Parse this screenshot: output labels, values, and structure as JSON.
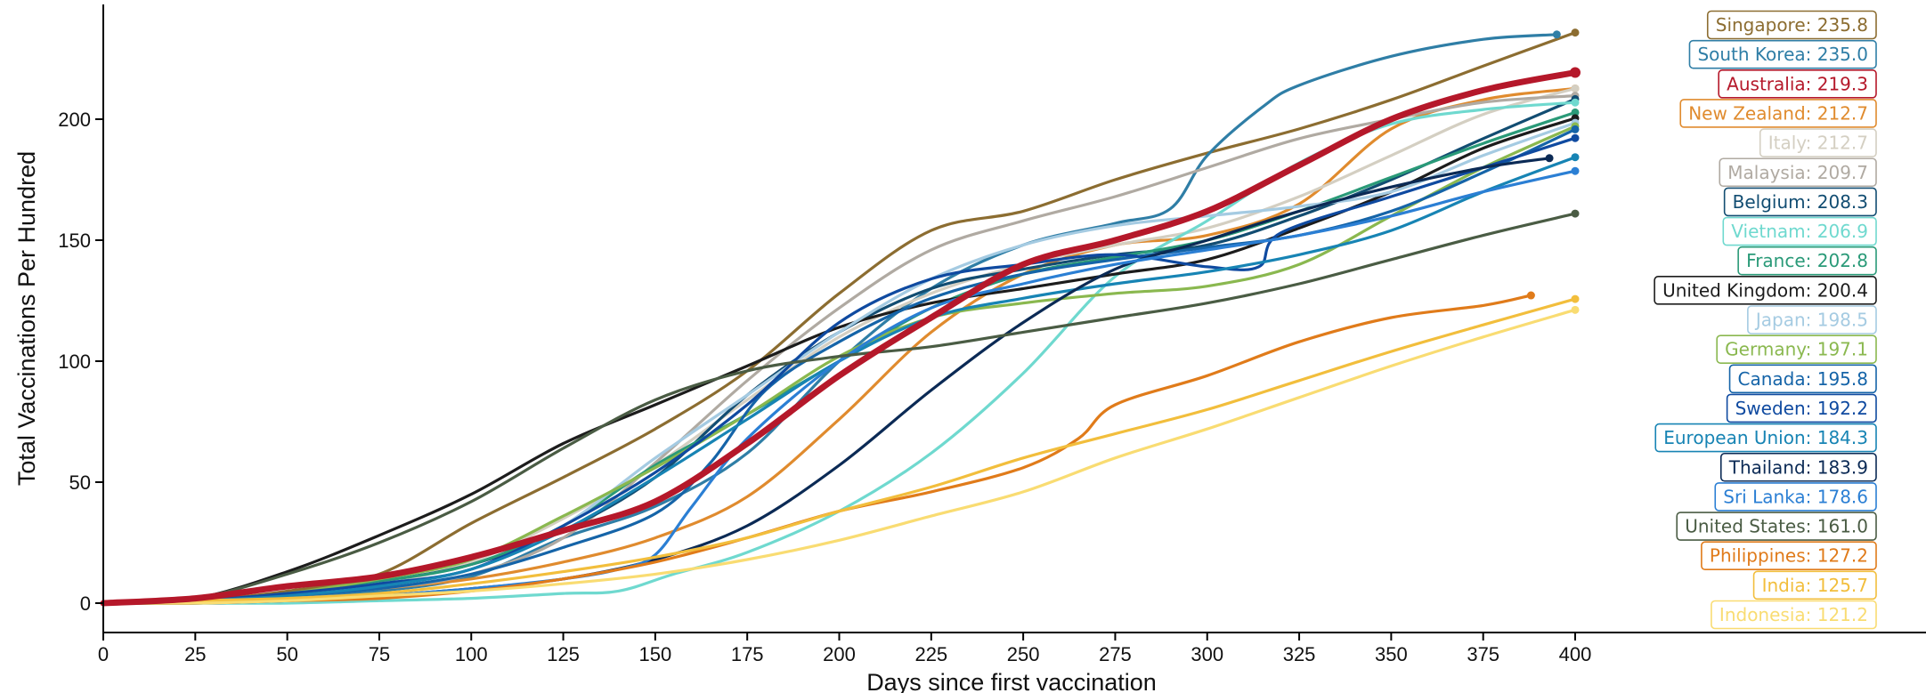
{
  "chart_data": {
    "type": "line",
    "title": "",
    "xlabel": "Days since first vaccination",
    "ylabel": "Total Vaccinations Per Hundred",
    "xlim": [
      0,
      400
    ],
    "ylim": [
      -12,
      246
    ],
    "xticks": [
      0,
      25,
      50,
      75,
      100,
      125,
      150,
      175,
      200,
      225,
      250,
      275,
      300,
      325,
      350,
      375,
      400
    ],
    "yticks": [
      0,
      50,
      100,
      150,
      200
    ],
    "grid": false,
    "legend": "right, end-of-line labels",
    "series": [
      {
        "name": "Singapore",
        "label": "Singapore: 235.8",
        "color": "#8c6d31",
        "end_x": 400,
        "x": [
          0,
          25,
          50,
          75,
          100,
          125,
          150,
          175,
          200,
          225,
          250,
          275,
          300,
          325,
          350,
          375,
          400
        ],
        "y": [
          0,
          1,
          5,
          12,
          33,
          52,
          72,
          96,
          128,
          154,
          162,
          175,
          186,
          196,
          208,
          222,
          235.8
        ]
      },
      {
        "name": "South Korea",
        "label": "South Korea: 235.0",
        "color": "#2f7ea6",
        "end_x": 395,
        "x": [
          0,
          25,
          50,
          75,
          100,
          125,
          150,
          175,
          200,
          225,
          250,
          275,
          290,
          300,
          315,
          325,
          350,
          375,
          395
        ],
        "y": [
          0,
          0,
          2,
          5,
          11,
          27,
          40,
          62,
          100,
          130,
          148,
          157,
          163,
          185,
          205,
          214,
          226,
          233,
          235.0
        ]
      },
      {
        "name": "Australia",
        "label": "Australia: 219.3",
        "color": "#b5182a",
        "end_x": 400,
        "thick": true,
        "x": [
          0,
          25,
          50,
          75,
          100,
          125,
          150,
          175,
          200,
          225,
          250,
          275,
          300,
          325,
          350,
          375,
          400
        ],
        "y": [
          0,
          2,
          7,
          11,
          19,
          30,
          42,
          66,
          94,
          118,
          140,
          150,
          162,
          181,
          200,
          212,
          219.3
        ]
      },
      {
        "name": "New Zealand",
        "label": "New Zealand: 212.7",
        "color": "#e08b2e",
        "end_x": 400,
        "x": [
          0,
          25,
          50,
          75,
          100,
          125,
          150,
          175,
          200,
          225,
          250,
          275,
          300,
          325,
          350,
          375,
          400
        ],
        "y": [
          0,
          1,
          3,
          6,
          10,
          17,
          27,
          44,
          76,
          112,
          136,
          148,
          152,
          165,
          196,
          208,
          212.7
        ]
      },
      {
        "name": "Italy",
        "label": "Italy: 212.7",
        "color": "#d4cfc2",
        "end_x": 400,
        "x": [
          0,
          25,
          50,
          75,
          100,
          125,
          150,
          175,
          200,
          225,
          250,
          275,
          300,
          325,
          350,
          375,
          400
        ],
        "y": [
          0,
          1,
          3,
          8,
          17,
          35,
          57,
          84,
          110,
          128,
          140,
          148,
          155,
          168,
          185,
          202,
          212.7
        ]
      },
      {
        "name": "Malaysia",
        "label": "Malaysia: 209.7",
        "color": "#b0aaa2",
        "end_x": 400,
        "x": [
          0,
          25,
          50,
          75,
          100,
          125,
          150,
          175,
          200,
          225,
          250,
          275,
          300,
          325,
          350,
          375,
          400
        ],
        "y": [
          0,
          1,
          3,
          6,
          12,
          27,
          58,
          92,
          122,
          146,
          158,
          168,
          180,
          192,
          200,
          207,
          209.7
        ]
      },
      {
        "name": "Belgium",
        "label": "Belgium: 208.3",
        "color": "#124d72",
        "end_x": 400,
        "x": [
          0,
          25,
          50,
          75,
          100,
          125,
          150,
          175,
          200,
          225,
          250,
          275,
          300,
          325,
          350,
          375,
          400
        ],
        "y": [
          0,
          1,
          4,
          9,
          16,
          30,
          52,
          86,
          112,
          130,
          138,
          144,
          148,
          160,
          175,
          192,
          208.3
        ]
      },
      {
        "name": "Vietnam",
        "label": "Vietnam: 206.9",
        "color": "#6fd9cf",
        "end_x": 400,
        "x": [
          0,
          25,
          50,
          75,
          100,
          125,
          140,
          155,
          175,
          200,
          225,
          250,
          275,
          300,
          325,
          350,
          375,
          400
        ],
        "y": [
          0,
          0,
          0,
          1,
          2,
          4,
          5,
          12,
          21,
          38,
          62,
          95,
          135,
          158,
          182,
          198,
          204,
          206.9
        ]
      },
      {
        "name": "France",
        "label": "France: 202.8",
        "color": "#2a9a78",
        "end_x": 400,
        "x": [
          0,
          25,
          50,
          75,
          100,
          125,
          150,
          175,
          200,
          225,
          250,
          275,
          300,
          325,
          350,
          375,
          400
        ],
        "y": [
          0,
          1,
          4,
          9,
          16,
          32,
          57,
          78,
          100,
          122,
          136,
          143,
          150,
          162,
          176,
          190,
          202.8
        ]
      },
      {
        "name": "United Kingdom",
        "label": "United Kingdom: 200.4",
        "color": "#1c1c1c",
        "end_x": 400,
        "x": [
          0,
          25,
          50,
          75,
          100,
          125,
          150,
          175,
          200,
          225,
          250,
          275,
          300,
          325,
          350,
          375,
          400
        ],
        "y": [
          0,
          2,
          13,
          28,
          45,
          66,
          82,
          98,
          114,
          124,
          130,
          136,
          142,
          155,
          170,
          188,
          200.4
        ]
      },
      {
        "name": "Japan",
        "label": "Japan: 198.5",
        "color": "#a5cbe2",
        "end_x": 400,
        "x": [
          0,
          25,
          50,
          75,
          100,
          125,
          150,
          175,
          200,
          225,
          250,
          275,
          300,
          325,
          350,
          375,
          400
        ],
        "y": [
          0,
          1,
          3,
          8,
          14,
          32,
          60,
          86,
          112,
          134,
          148,
          156,
          160,
          164,
          170,
          185,
          198.5
        ]
      },
      {
        "name": "Germany",
        "label": "Germany: 197.1",
        "color": "#8ab84f",
        "end_x": 400,
        "x": [
          0,
          25,
          50,
          75,
          100,
          125,
          150,
          175,
          200,
          225,
          250,
          275,
          300,
          325,
          350,
          375,
          400
        ],
        "y": [
          0,
          1,
          4,
          10,
          18,
          36,
          56,
          78,
          102,
          118,
          124,
          128,
          131,
          140,
          160,
          180,
          197.1
        ]
      },
      {
        "name": "Canada",
        "label": "Canada: 195.8",
        "color": "#1564a8",
        "end_x": 400,
        "x": [
          0,
          25,
          50,
          75,
          100,
          125,
          150,
          165,
          180,
          200,
          225,
          250,
          275,
          300,
          325,
          350,
          375,
          400
        ],
        "y": [
          0,
          1,
          3,
          6,
          12,
          23,
          37,
          58,
          88,
          108,
          126,
          136,
          142,
          147,
          152,
          162,
          178,
          195.8
        ]
      },
      {
        "name": "Sweden",
        "label": "Sweden: 192.2",
        "color": "#0f4aa0",
        "end_x": 400,
        "x": [
          0,
          25,
          50,
          75,
          100,
          125,
          150,
          175,
          200,
          225,
          250,
          275,
          300,
          314,
          320,
          350,
          375,
          400
        ],
        "y": [
          0,
          1,
          4,
          8,
          14,
          32,
          54,
          82,
          116,
          134,
          140,
          144,
          139,
          139,
          153,
          168,
          180,
          192.2
        ]
      },
      {
        "name": "European Union",
        "label": "European Union: 184.3",
        "color": "#1784b4",
        "end_x": 400,
        "x": [
          0,
          25,
          50,
          75,
          100,
          125,
          150,
          175,
          200,
          225,
          250,
          275,
          300,
          325,
          350,
          375,
          400
        ],
        "y": [
          0,
          1,
          3,
          7,
          14,
          30,
          52,
          76,
          100,
          118,
          126,
          132,
          137,
          144,
          154,
          170,
          184.3
        ]
      },
      {
        "name": "Thailand",
        "label": "Thailand: 183.9",
        "color": "#0b2a55",
        "end_x": 393,
        "x": [
          0,
          25,
          50,
          75,
          100,
          125,
          150,
          175,
          200,
          225,
          250,
          275,
          300,
          325,
          350,
          375,
          393
        ],
        "y": [
          0,
          0,
          1,
          3,
          6,
          10,
          18,
          32,
          57,
          88,
          116,
          138,
          150,
          162,
          172,
          180,
          183.9
        ]
      },
      {
        "name": "Sri Lanka",
        "label": "Sri Lanka: 178.6",
        "color": "#2b7fd4",
        "end_x": 400,
        "x": [
          0,
          25,
          50,
          75,
          100,
          125,
          140,
          150,
          160,
          175,
          200,
          225,
          250,
          275,
          300,
          325,
          350,
          375,
          400
        ],
        "y": [
          0,
          0,
          1,
          3,
          6,
          10,
          14,
          20,
          40,
          68,
          100,
          122,
          132,
          140,
          146,
          152,
          160,
          170,
          178.6
        ]
      },
      {
        "name": "United States",
        "label": "United States: 161.0",
        "color": "#4a5c44",
        "end_x": 400,
        "x": [
          0,
          25,
          50,
          75,
          100,
          125,
          150,
          175,
          200,
          225,
          250,
          275,
          300,
          325,
          350,
          375,
          400
        ],
        "y": [
          0,
          2,
          12,
          25,
          42,
          64,
          84,
          96,
          102,
          106,
          112,
          118,
          124,
          132,
          142,
          152,
          161.0
        ]
      },
      {
        "name": "Philippines",
        "label": "Philippines: 127.2",
        "color": "#e07b1a",
        "end_x": 388,
        "x": [
          0,
          25,
          50,
          75,
          100,
          125,
          150,
          175,
          200,
          225,
          250,
          265,
          275,
          300,
          325,
          350,
          375,
          388
        ],
        "y": [
          0,
          0,
          1,
          2,
          5,
          10,
          17,
          27,
          38,
          46,
          56,
          68,
          82,
          94,
          108,
          118,
          123,
          127.2
        ]
      },
      {
        "name": "India",
        "label": "India: 125.7",
        "color": "#f2be3c",
        "end_x": 400,
        "x": [
          0,
          25,
          50,
          75,
          100,
          125,
          150,
          175,
          200,
          225,
          250,
          275,
          300,
          325,
          350,
          375,
          400
        ],
        "y": [
          0,
          1,
          2,
          4,
          8,
          13,
          19,
          27,
          38,
          48,
          60,
          70,
          80,
          92,
          104,
          115,
          125.7
        ]
      },
      {
        "name": "Indonesia",
        "label": "Indonesia: 121.2",
        "color": "#f9dc72",
        "end_x": 400,
        "x": [
          0,
          25,
          50,
          75,
          100,
          125,
          150,
          175,
          200,
          225,
          250,
          275,
          300,
          325,
          350,
          375,
          400
        ],
        "y": [
          0,
          0,
          1,
          3,
          5,
          8,
          12,
          18,
          26,
          36,
          46,
          60,
          72,
          85,
          98,
          110,
          121.2
        ]
      }
    ]
  }
}
